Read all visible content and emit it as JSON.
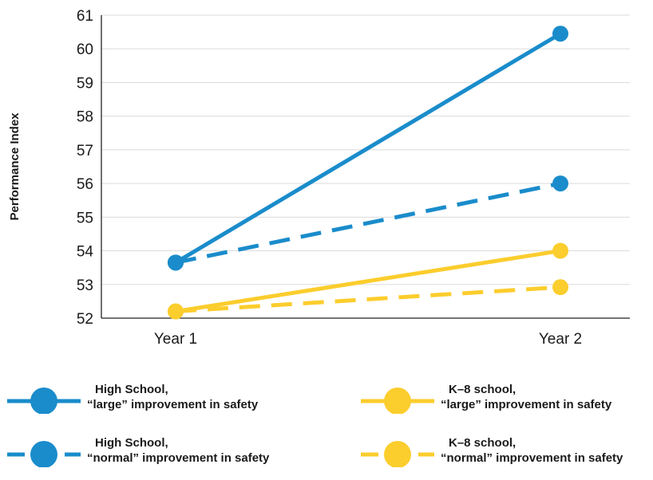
{
  "chart_data": {
    "type": "line",
    "title": "",
    "xlabel": "",
    "ylabel": "Performance Index",
    "categories": [
      "Year 1",
      "Year 2"
    ],
    "ylim": [
      52,
      61
    ],
    "yticks": [
      52,
      53,
      54,
      55,
      56,
      57,
      58,
      59,
      60,
      61
    ],
    "grid": true,
    "legend_position": "bottom",
    "series": [
      {
        "name_line1": "High School,",
        "name_line2": "“large” improvement in safety",
        "values": [
          53.65,
          60.45
        ],
        "color": "#1a8ccb",
        "dashed": false
      },
      {
        "name_line1": "High School,",
        "name_line2": "“normal” improvement in safety",
        "values": [
          53.65,
          56.0
        ],
        "color": "#1a8ccb",
        "dashed": true
      },
      {
        "name_line1": "K–8 school,",
        "name_line2": "“large” improvement in safety",
        "values": [
          52.2,
          54.0
        ],
        "color": "#fbcd2d",
        "dashed": false
      },
      {
        "name_line1": "K–8 school,",
        "name_line2": "“normal” improvement in safety",
        "values": [
          52.2,
          52.92
        ],
        "color": "#fbcd2d",
        "dashed": true
      }
    ]
  }
}
